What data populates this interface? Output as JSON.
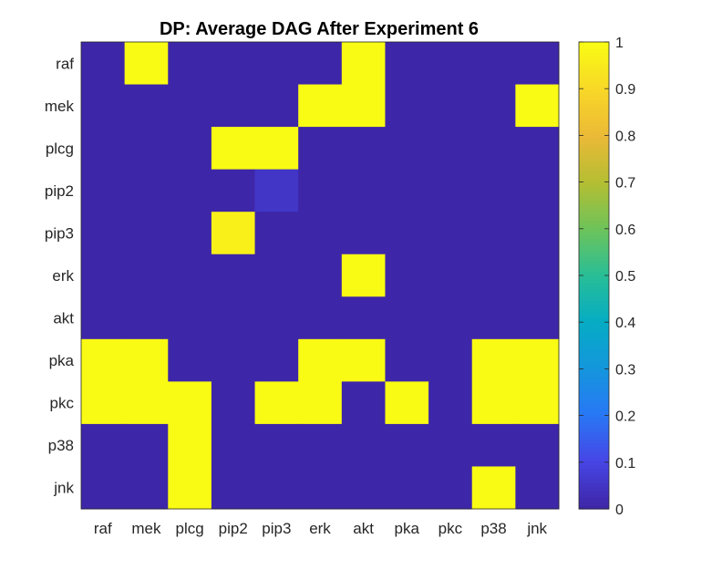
{
  "chart_data": {
    "type": "heatmap",
    "title": "DP: Average DAG After Experiment 6",
    "xlabel": "",
    "ylabel": "",
    "x_labels": [
      "raf",
      "mek",
      "plcg",
      "pip2",
      "pip3",
      "erk",
      "akt",
      "pka",
      "pkc",
      "p38",
      "jnk"
    ],
    "y_labels": [
      "raf",
      "mek",
      "plcg",
      "pip2",
      "pip3",
      "erk",
      "akt",
      "pka",
      "pkc",
      "p38",
      "jnk"
    ],
    "values": [
      [
        0,
        1,
        0,
        0,
        0,
        0,
        1,
        0,
        0,
        0,
        0
      ],
      [
        0,
        0,
        0,
        0,
        0,
        1,
        1,
        0,
        0,
        0,
        1
      ],
      [
        0,
        0,
        0,
        1,
        1,
        0,
        0,
        0,
        0,
        0,
        0
      ],
      [
        0,
        0,
        0,
        0,
        0.05,
        0,
        0,
        0,
        0,
        0,
        0
      ],
      [
        0,
        0,
        0,
        0.97,
        0,
        0,
        0,
        0,
        0,
        0,
        0
      ],
      [
        0,
        0,
        0,
        0,
        0,
        0,
        1,
        0,
        0,
        0,
        0
      ],
      [
        0,
        0,
        0,
        0,
        0,
        0,
        0,
        0,
        0,
        0,
        0
      ],
      [
        1,
        1,
        0,
        0,
        0,
        1,
        1,
        0,
        0,
        1,
        1
      ],
      [
        1,
        1,
        1,
        0,
        1,
        1,
        0,
        1,
        0,
        1,
        1
      ],
      [
        0,
        0,
        1,
        0,
        0,
        0,
        0,
        0,
        0,
        0,
        0
      ],
      [
        0,
        0,
        1,
        0,
        0,
        0,
        0,
        0,
        0,
        1,
        0
      ]
    ],
    "colorbar": {
      "range": [
        0,
        1
      ],
      "ticks": [
        "0",
        "0.1",
        "0.2",
        "0.3",
        "0.4",
        "0.5",
        "0.6",
        "0.7",
        "0.8",
        "0.9",
        "1"
      ],
      "colormap": "parula"
    }
  }
}
